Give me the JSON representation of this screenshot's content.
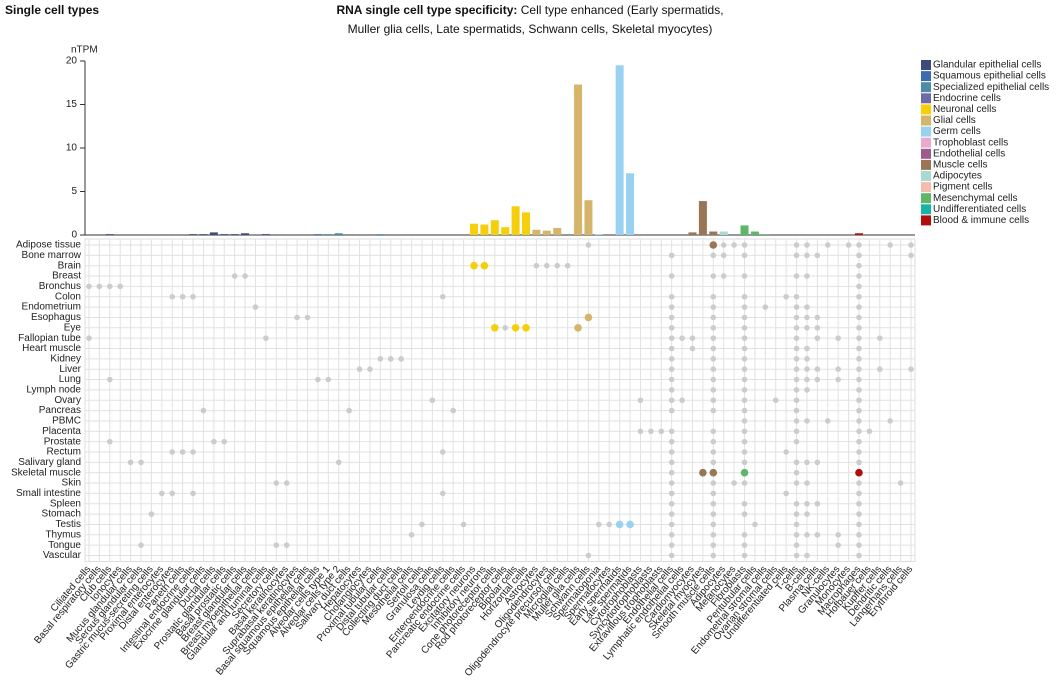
{
  "chart_data": {
    "type": "bar",
    "heading": "Single cell types",
    "title": "RNA single cell type specificity:",
    "subtitle": "Cell type enhanced (Early spermatids, Muller glia cells, Late spermatids, Schwann cells, Skeletal myocytes)",
    "y_label": "nTPM",
    "ylim": [
      0,
      20
    ],
    "yticks": [
      0,
      5,
      10,
      15,
      20
    ],
    "categories": [
      "Ciliated cells",
      "Basal respiratory cells",
      "Club cells",
      "Ionocytes",
      "Mucus glandular cells",
      "Serous glandular cells",
      "Gastric mucus-secreting cells",
      "Proximal enterocytes",
      "Distal enterocytes",
      "Paneth cells",
      "Intestinal endocrine cells",
      "Exocrine glandular cells",
      "Ductal cells",
      "Prostatic glandular cells",
      "Basal prostatic cells",
      "Breast glandular cells",
      "Breast myoepithelial cells",
      "Glandular and luminal cells",
      "Secretory cells",
      "Basal keratinocytes",
      "Suprabasal keratinocytes",
      "Basal squamous epithelial cells",
      "Squamous epithelial cells",
      "Alveolar cells type 1",
      "Alveolar cells type 2",
      "Salivary duct cells",
      "Hepatocytes",
      "Cholangiocytes",
      "Proximal tubular cells",
      "Distal tubular cells",
      "Collecting duct cells",
      "Mesothelial cells",
      "Sertoli cells",
      "Granulosa cells",
      "Leydig cells",
      "Enteroendocrine cells",
      "Pancreatic endocrine cells",
      "Excitatory neurons",
      "Inhibitory neurons",
      "Cone photoreceptor cells",
      "Rod photoreceptor cells",
      "Bipolar cells",
      "Horizontal cells",
      "Astrocytes",
      "Oligodendrocytes",
      "Oligodendrocyte precursor cells",
      "Microglial cells",
      "Muller glia cells",
      "Schwann cells",
      "Spermatogonia",
      "Spermatocytes",
      "Early spermatids",
      "Late spermatids",
      "Cytotrophoblasts",
      "Syncytiotrophoblasts",
      "Extravillous trophoblasts",
      "Endothelial cells",
      "Lymphatic endothelial cells",
      "Cardiomyocytes",
      "Skeletal myocytes",
      "Smooth muscle cells",
      "Adipocytes",
      "Melanocytes",
      "Fibroblasts",
      "Peritubular cells",
      "Endometrial stromal cells",
      "Ovarian stromal cells",
      "Undifferentiated cells",
      "T-cells",
      "B-cells",
      "Plasma cells",
      "NK-cells",
      "Granulocytes",
      "Monocytes",
      "Macrophages",
      "Hofbauer cells",
      "Kupffer cells",
      "Dendritic cells",
      "Langerhans cells",
      "Erythroid cells"
    ],
    "values": [
      0,
      0,
      0.1,
      0,
      0,
      0,
      0,
      0,
      0,
      0,
      0.1,
      0.1,
      0.3,
      0.1,
      0.1,
      0.2,
      0,
      0.1,
      0,
      0,
      0,
      0,
      0.1,
      0.1,
      0.2,
      0,
      0,
      0,
      0.1,
      0,
      0,
      0,
      0,
      0,
      0,
      0,
      0,
      1.3,
      1.2,
      1.7,
      0.9,
      3.3,
      2.6,
      0.6,
      0.5,
      0.8,
      0,
      17.3,
      4.0,
      0.1,
      0,
      19.5,
      7.1,
      0,
      0,
      0,
      0,
      0,
      0.3,
      3.9,
      0.4,
      0.4,
      0,
      1.1,
      0.4,
      0.1,
      0,
      0,
      0,
      0,
      0,
      0,
      0,
      0,
      0.2,
      0,
      0,
      0,
      0,
      0
    ],
    "colors": [
      "#3d4b7c",
      "#3d4b7c",
      "#3d4b7c",
      "#3d4b7c",
      "#3d4b7c",
      "#3d4b7c",
      "#3d4b7c",
      "#3d4b7c",
      "#3d4b7c",
      "#3d4b7c",
      "#3d4b7c",
      "#3d4b7c",
      "#3d4b7c",
      "#3d4b7c",
      "#3d4b7c",
      "#3d4b7c",
      "#3d4b7c",
      "#3d4b7c",
      "#3d4b7c",
      "#3d6cb0",
      "#3d6cb0",
      "#3d6cb0",
      "#3d6cb0",
      "#4f8aa8",
      "#4f8aa8",
      "#4f8aa8",
      "#4f8aa8",
      "#4f8aa8",
      "#4f8aa8",
      "#4f8aa8",
      "#4f8aa8",
      "#4f8aa8",
      "#4f8aa8",
      "#4f8aa8",
      "#4f8aa8",
      "#6e6aa6",
      "#6e6aa6",
      "#f5cf0c",
      "#f5cf0c",
      "#f5cf0c",
      "#f5cf0c",
      "#f5cf0c",
      "#f5cf0c",
      "#d6b46a",
      "#d6b46a",
      "#d6b46a",
      "#d6b46a",
      "#d6b46a",
      "#d6b46a",
      "#99d2f0",
      "#99d2f0",
      "#99d2f0",
      "#99d2f0",
      "#e8aacd",
      "#e8aacd",
      "#e8aacd",
      "#9e5a8c",
      "#9e5a8c",
      "#9b7656",
      "#9b7656",
      "#9b7656",
      "#a9d9d0",
      "#f3bcae",
      "#5cb868",
      "#5cb868",
      "#5cb868",
      "#5cb868",
      "#17b3a6",
      "#b00d0d",
      "#b00d0d",
      "#b00d0d",
      "#b00d0d",
      "#b00d0d",
      "#b00d0d",
      "#b00d0d",
      "#b00d0d",
      "#b00d0d",
      "#b00d0d",
      "#b00d0d",
      "#b00d0d"
    ],
    "legend": [
      {
        "name": "Glandular epithelial cells",
        "color": "#3d4b7c"
      },
      {
        "name": "Squamous epithelial cells",
        "color": "#3d6cb0"
      },
      {
        "name": "Specialized epithelial cells",
        "color": "#4f8aa8"
      },
      {
        "name": "Endocrine cells",
        "color": "#6e6aa6"
      },
      {
        "name": "Neuronal cells",
        "color": "#f5cf0c"
      },
      {
        "name": "Glial cells",
        "color": "#d6b46a"
      },
      {
        "name": "Germ cells",
        "color": "#99d2f0"
      },
      {
        "name": "Trophoblast cells",
        "color": "#e8aacd"
      },
      {
        "name": "Endothelial cells",
        "color": "#9e5a8c"
      },
      {
        "name": "Muscle cells",
        "color": "#9b7656"
      },
      {
        "name": "Adipocytes",
        "color": "#a9d9d0"
      },
      {
        "name": "Pigment cells",
        "color": "#f3bcae"
      },
      {
        "name": "Mesenchymal cells",
        "color": "#5cb868"
      },
      {
        "name": "Undifferentiated cells",
        "color": "#17b3a6"
      },
      {
        "name": "Blood & immune cells",
        "color": "#b00d0d"
      }
    ],
    "dot_color": "#cccccc",
    "rows": [
      {
        "name": "Adipose tissue",
        "cells": [
          48,
          61,
          62,
          63,
          68,
          69,
          71,
          73,
          74,
          77,
          79
        ],
        "enhanced": [
          60
        ]
      },
      {
        "name": "Bone marrow",
        "cells": [
          56,
          60,
          61,
          63,
          68,
          69,
          70,
          74,
          79
        ],
        "enhanced": []
      },
      {
        "name": "Brain",
        "cells": [
          43,
          44,
          45,
          46,
          74
        ],
        "enhanced": [
          37,
          38
        ]
      },
      {
        "name": "Breast",
        "cells": [
          14,
          15,
          56,
          60,
          61,
          63,
          68,
          69,
          74
        ],
        "enhanced": []
      },
      {
        "name": "Bronchus",
        "cells": [
          0,
          1,
          2,
          3,
          74
        ],
        "enhanced": []
      },
      {
        "name": "Colon",
        "cells": [
          8,
          9,
          10,
          34,
          56,
          60,
          63,
          67,
          68,
          74
        ],
        "enhanced": []
      },
      {
        "name": "Endometrium",
        "cells": [
          16,
          56,
          60,
          63,
          65,
          68,
          69,
          74
        ],
        "enhanced": []
      },
      {
        "name": "Esophagus",
        "cells": [
          20,
          21,
          56,
          60,
          63,
          68,
          69,
          70,
          74
        ],
        "enhanced": [
          48
        ]
      },
      {
        "name": "Eye",
        "cells": [
          40,
          56,
          60,
          63,
          68,
          69,
          70,
          74
        ],
        "enhanced": [
          39,
          41,
          42,
          47
        ]
      },
      {
        "name": "Fallopian tube",
        "cells": [
          0,
          17,
          56,
          57,
          58,
          60,
          63,
          68,
          70,
          72,
          74,
          76
        ],
        "enhanced": []
      },
      {
        "name": "Heart muscle",
        "cells": [
          56,
          58,
          60,
          63,
          68,
          69,
          74
        ],
        "enhanced": []
      },
      {
        "name": "Kidney",
        "cells": [
          28,
          29,
          30,
          56,
          60,
          63,
          68,
          69,
          74
        ],
        "enhanced": []
      },
      {
        "name": "Liver",
        "cells": [
          26,
          27,
          56,
          60,
          63,
          68,
          69,
          70,
          72,
          74,
          76,
          79
        ],
        "enhanced": []
      },
      {
        "name": "Lung",
        "cells": [
          2,
          22,
          23,
          56,
          60,
          63,
          68,
          69,
          70,
          72,
          74
        ],
        "enhanced": []
      },
      {
        "name": "Lymph node",
        "cells": [
          56,
          60,
          63,
          68,
          69,
          74
        ],
        "enhanced": []
      },
      {
        "name": "Ovary",
        "cells": [
          33,
          53,
          56,
          57,
          60,
          63,
          66,
          68,
          74
        ],
        "enhanced": []
      },
      {
        "name": "Pancreas",
        "cells": [
          11,
          25,
          35,
          56,
          60,
          63,
          68,
          74
        ],
        "enhanced": []
      },
      {
        "name": "PBMC",
        "cells": [
          63,
          68,
          69,
          71,
          74,
          77
        ],
        "enhanced": []
      },
      {
        "name": "Placenta",
        "cells": [
          53,
          54,
          55,
          56,
          60,
          63,
          68,
          74,
          75
        ],
        "enhanced": []
      },
      {
        "name": "Prostate",
        "cells": [
          2,
          12,
          13,
          56,
          60,
          63,
          68,
          74
        ],
        "enhanced": []
      },
      {
        "name": "Rectum",
        "cells": [
          8,
          9,
          10,
          34,
          56,
          60,
          63,
          67,
          74
        ],
        "enhanced": []
      },
      {
        "name": "Salivary gland",
        "cells": [
          4,
          5,
          24,
          56,
          60,
          63,
          68,
          69,
          70,
          74
        ],
        "enhanced": []
      },
      {
        "name": "Skeletal muscle",
        "cells": [
          56,
          68
        ],
        "enhanced": [
          59,
          60,
          63,
          74
        ]
      },
      {
        "name": "Skin",
        "cells": [
          18,
          19,
          56,
          60,
          62,
          63,
          68,
          69,
          74,
          78
        ],
        "enhanced": []
      },
      {
        "name": "Small intestine",
        "cells": [
          7,
          8,
          10,
          34,
          56,
          60,
          67,
          74
        ],
        "enhanced": []
      },
      {
        "name": "Spleen",
        "cells": [
          56,
          60,
          63,
          68,
          69,
          70,
          74
        ],
        "enhanced": []
      },
      {
        "name": "Stomach",
        "cells": [
          6,
          56,
          60,
          63,
          68,
          69,
          74
        ],
        "enhanced": []
      },
      {
        "name": "Testis",
        "cells": [
          32,
          36,
          49,
          50,
          56,
          60,
          64,
          68,
          74
        ],
        "enhanced": [
          51,
          52
        ]
      },
      {
        "name": "Thymus",
        "cells": [
          31,
          56,
          60,
          63,
          68,
          69,
          70,
          72,
          74
        ],
        "enhanced": []
      },
      {
        "name": "Tongue",
        "cells": [
          5,
          18,
          19,
          56,
          60,
          63,
          68,
          72,
          74
        ],
        "enhanced": []
      },
      {
        "name": "Vascular",
        "cells": [
          48,
          56,
          60,
          63,
          68,
          69,
          74
        ],
        "enhanced": []
      }
    ]
  }
}
